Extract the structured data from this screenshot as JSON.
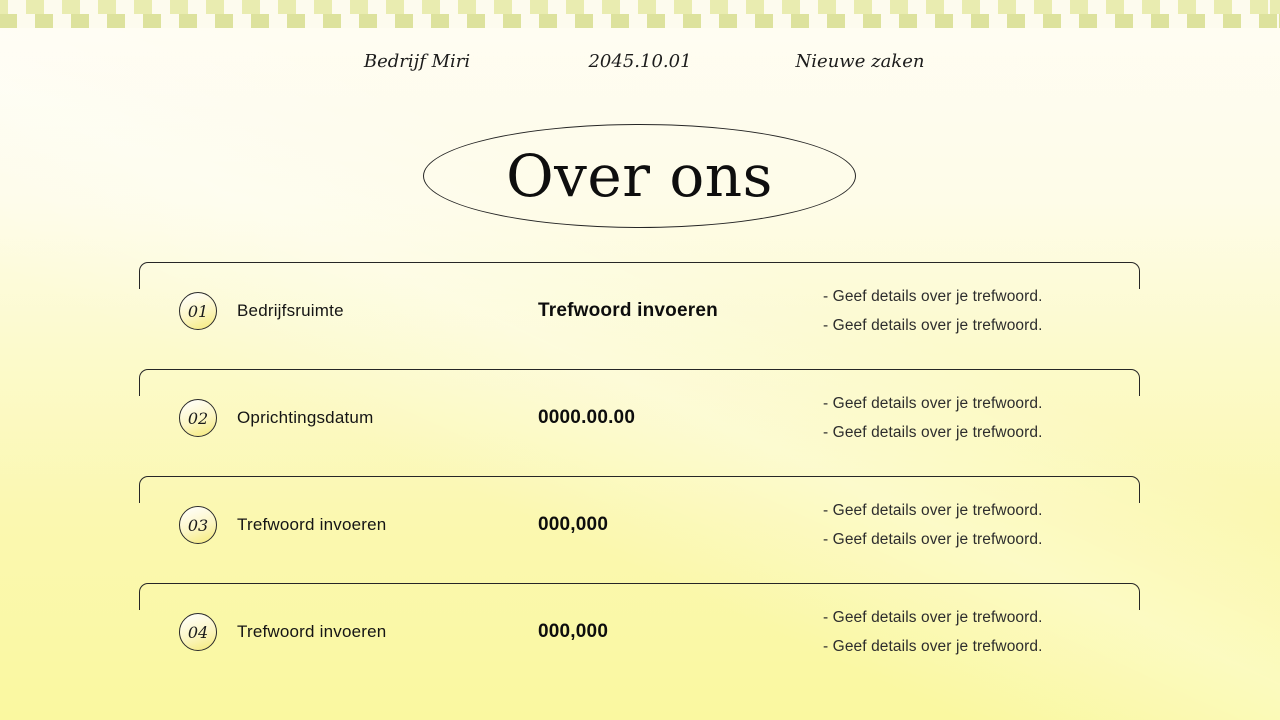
{
  "slide": {
    "header": {
      "company": "Bedrijf Miri",
      "date": "2045.10.01",
      "section": "Nieuwe zaken"
    },
    "title": "Over ons",
    "rows": [
      {
        "number": "01",
        "label": "Bedrijfsruimte",
        "keyword": "Trefwoord invoeren",
        "details": [
          "- Geef details over je trefwoord.",
          "- Geef details over je trefwoord."
        ]
      },
      {
        "number": "02",
        "label": "Oprichtingsdatum",
        "keyword": "0000.00.00",
        "details": [
          "- Geef details over je trefwoord.",
          "- Geef details over je trefwoord."
        ]
      },
      {
        "number": "03",
        "label": "Trefwoord invoeren",
        "keyword": "000,000",
        "details": [
          "- Geef details over je trefwoord.",
          "- Geef details over je trefwoord."
        ]
      },
      {
        "number": "04",
        "label": "Trefwoord invoeren",
        "keyword": "000,000",
        "details": [
          "- Geef details over je trefwoord.",
          "- Geef details over je trefwoord."
        ]
      }
    ],
    "colors": {
      "checker_yellow_light": "#e9ecb0",
      "checker_yellow_dark": "#dde29d",
      "checker_cream": "#fdfbee",
      "background_top": "#fffdf4",
      "background_bottom": "#faf8a0",
      "outline": "#262626",
      "text_primary": "#111111",
      "text_secondary": "#2d2d2d",
      "circle_top": "#fffef8",
      "circle_bottom": "#f5ea7c"
    }
  }
}
